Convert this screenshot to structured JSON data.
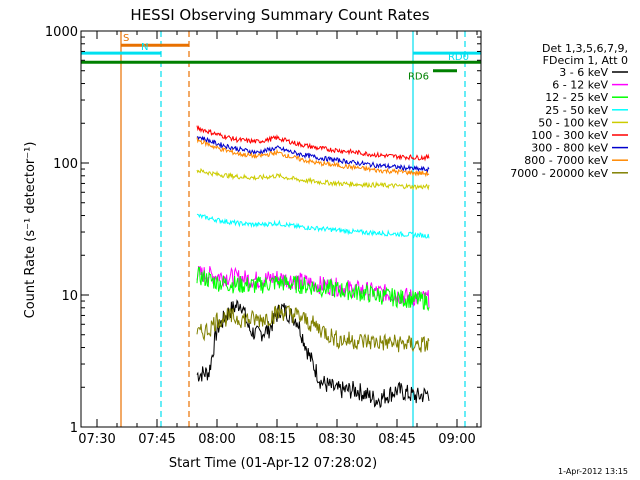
{
  "chart_data": {
    "type": "line",
    "title": "HESSI Observing Summary Count Rates",
    "xlabel": "Start Time (01-Apr-12 07:28:02)",
    "ylabel": "Count Rate (s⁻¹ detector⁻¹)",
    "y_scale": "log",
    "xlim": [
      "07:26",
      "09:06"
    ],
    "ylim": [
      1,
      1000
    ],
    "x_ticks": [
      "07:30",
      "07:45",
      "08:00",
      "08:15",
      "08:30",
      "08:45",
      "09:00"
    ],
    "y_ticks": [
      "1",
      "10",
      "100",
      "1000"
    ],
    "grid": false,
    "legend_position": "right",
    "legend_header": [
      "Det 1,3,5,6,7,9,",
      "FDecim 1, Att 0"
    ],
    "data_interval": [
      "07:55",
      "08:53"
    ],
    "series": [
      {
        "name": "3 - 6 keV",
        "color": "#000000",
        "x": [
          "07:55",
          "07:58",
          "08:00",
          "08:03",
          "08:06",
          "08:08",
          "08:10",
          "08:13",
          "08:16",
          "08:20",
          "08:23",
          "08:26",
          "08:30",
          "08:35",
          "08:40",
          "08:45",
          "08:50",
          "08:53"
        ],
        "y": [
          2.5,
          2.6,
          5.5,
          7.5,
          8.8,
          5.5,
          5.0,
          5.5,
          8.0,
          6.5,
          3.5,
          2.2,
          1.9,
          1.9,
          1.6,
          1.9,
          1.7,
          1.8
        ]
      },
      {
        "name": "6 - 12 keV",
        "color": "#ff00ff",
        "x": [
          "07:55",
          "08:00",
          "08:05",
          "08:10",
          "08:15",
          "08:20",
          "08:25",
          "08:30",
          "08:35",
          "08:40",
          "08:45",
          "08:50",
          "08:53"
        ],
        "y": [
          14.5,
          14.0,
          13.5,
          13.0,
          13.5,
          12.8,
          12.0,
          11.5,
          11.0,
          10.5,
          10.0,
          9.5,
          9.3
        ]
      },
      {
        "name": "12 - 25 keV",
        "color": "#00ff00",
        "x": [
          "07:55",
          "08:00",
          "08:05",
          "08:10",
          "08:15",
          "08:20",
          "08:25",
          "08:30",
          "08:35",
          "08:40",
          "08:45",
          "08:50",
          "08:53"
        ],
        "y": [
          14.0,
          12.5,
          12.0,
          11.8,
          12.5,
          12.0,
          11.5,
          11.0,
          10.5,
          10.0,
          9.5,
          9.2,
          9.0
        ]
      },
      {
        "name": "25 - 50 keV",
        "color": "#00ffff",
        "x": [
          "07:55",
          "08:00",
          "08:05",
          "08:10",
          "08:15",
          "08:20",
          "08:25",
          "08:30",
          "08:35",
          "08:40",
          "08:45",
          "08:50",
          "08:53"
        ],
        "y": [
          40,
          37,
          35,
          34,
          35,
          33,
          32,
          31,
          30,
          29.5,
          29,
          28.5,
          28
        ]
      },
      {
        "name": "50 - 100 keV",
        "color": "#cccc00",
        "x": [
          "07:55",
          "08:00",
          "08:05",
          "08:10",
          "08:15",
          "08:20",
          "08:25",
          "08:30",
          "08:35",
          "08:40",
          "08:45",
          "08:50",
          "08:53"
        ],
        "y": [
          88,
          82,
          79,
          77,
          80,
          75,
          72,
          70,
          69,
          68,
          67,
          66,
          66
        ]
      },
      {
        "name": "100 - 300 keV",
        "color": "#ff0000",
        "x": [
          "07:55",
          "08:00",
          "08:05",
          "08:10",
          "08:15",
          "08:20",
          "08:25",
          "08:30",
          "08:35",
          "08:40",
          "08:45",
          "08:50",
          "08:53"
        ],
        "y": [
          185,
          165,
          150,
          145,
          155,
          140,
          130,
          125,
          120,
          115,
          112,
          110,
          110
        ]
      },
      {
        "name": "300 - 800 keV",
        "color": "#0000cc",
        "x": [
          "07:55",
          "08:00",
          "08:05",
          "08:10",
          "08:15",
          "08:20",
          "08:25",
          "08:30",
          "08:35",
          "08:40",
          "08:45",
          "08:50",
          "08:53"
        ],
        "y": [
          160,
          140,
          128,
          120,
          130,
          118,
          110,
          105,
          100,
          96,
          93,
          90,
          89
        ]
      },
      {
        "name": "800 - 7000 keV",
        "color": "#ff8800",
        "x": [
          "07:55",
          "08:00",
          "08:05",
          "08:10",
          "08:15",
          "08:20",
          "08:25",
          "08:30",
          "08:35",
          "08:40",
          "08:45",
          "08:50",
          "08:53"
        ],
        "y": [
          150,
          130,
          118,
          112,
          120,
          108,
          100,
          96,
          92,
          88,
          86,
          84,
          83
        ]
      },
      {
        "name": "7000 - 20000 keV",
        "color": "#808000",
        "x": [
          "07:55",
          "07:58",
          "08:00",
          "08:03",
          "08:06",
          "08:10",
          "08:13",
          "08:16",
          "08:20",
          "08:23",
          "08:26",
          "08:30",
          "08:35",
          "08:40",
          "08:45",
          "08:50",
          "08:53"
        ],
        "y": [
          5.0,
          5.5,
          6.5,
          6.8,
          6.6,
          6.5,
          6.8,
          7.5,
          7.0,
          6.2,
          5.5,
          4.6,
          4.5,
          4.4,
          4.3,
          4.2,
          4.2
        ]
      }
    ],
    "vertical_markers": [
      {
        "x": "07:36",
        "color": "#e87000",
        "style": "solid"
      },
      {
        "x": "07:46",
        "color": "#00e0f0",
        "style": "dashed"
      },
      {
        "x": "07:53",
        "color": "#e87000",
        "style": "dashed"
      },
      {
        "x": "08:49",
        "color": "#00e0f0",
        "style": "solid"
      },
      {
        "x": "09:02",
        "color": "#00e0f0",
        "style": "dashed"
      }
    ],
    "horizontal_bars": [
      {
        "label": "S",
        "x_start": "07:36",
        "x_end": "07:53",
        "y": 780,
        "color": "#e87000"
      },
      {
        "label": "N",
        "x_start": "07:26",
        "x_end": "07:46",
        "y": 680,
        "color": "#00e0f0"
      },
      {
        "label": "",
        "x_start": "07:26",
        "x_end": "09:06",
        "y": 580,
        "color": "#008000"
      },
      {
        "label": "RD0",
        "x_start": "08:49",
        "x_end": "09:06",
        "y": 680,
        "color": "#00e0f0"
      },
      {
        "label": "RD6",
        "x_start": "08:54",
        "x_end": "09:00",
        "y": 500,
        "color": "#008000"
      }
    ]
  },
  "footer": {
    "timestamp": "1-Apr-2012 13:15"
  }
}
